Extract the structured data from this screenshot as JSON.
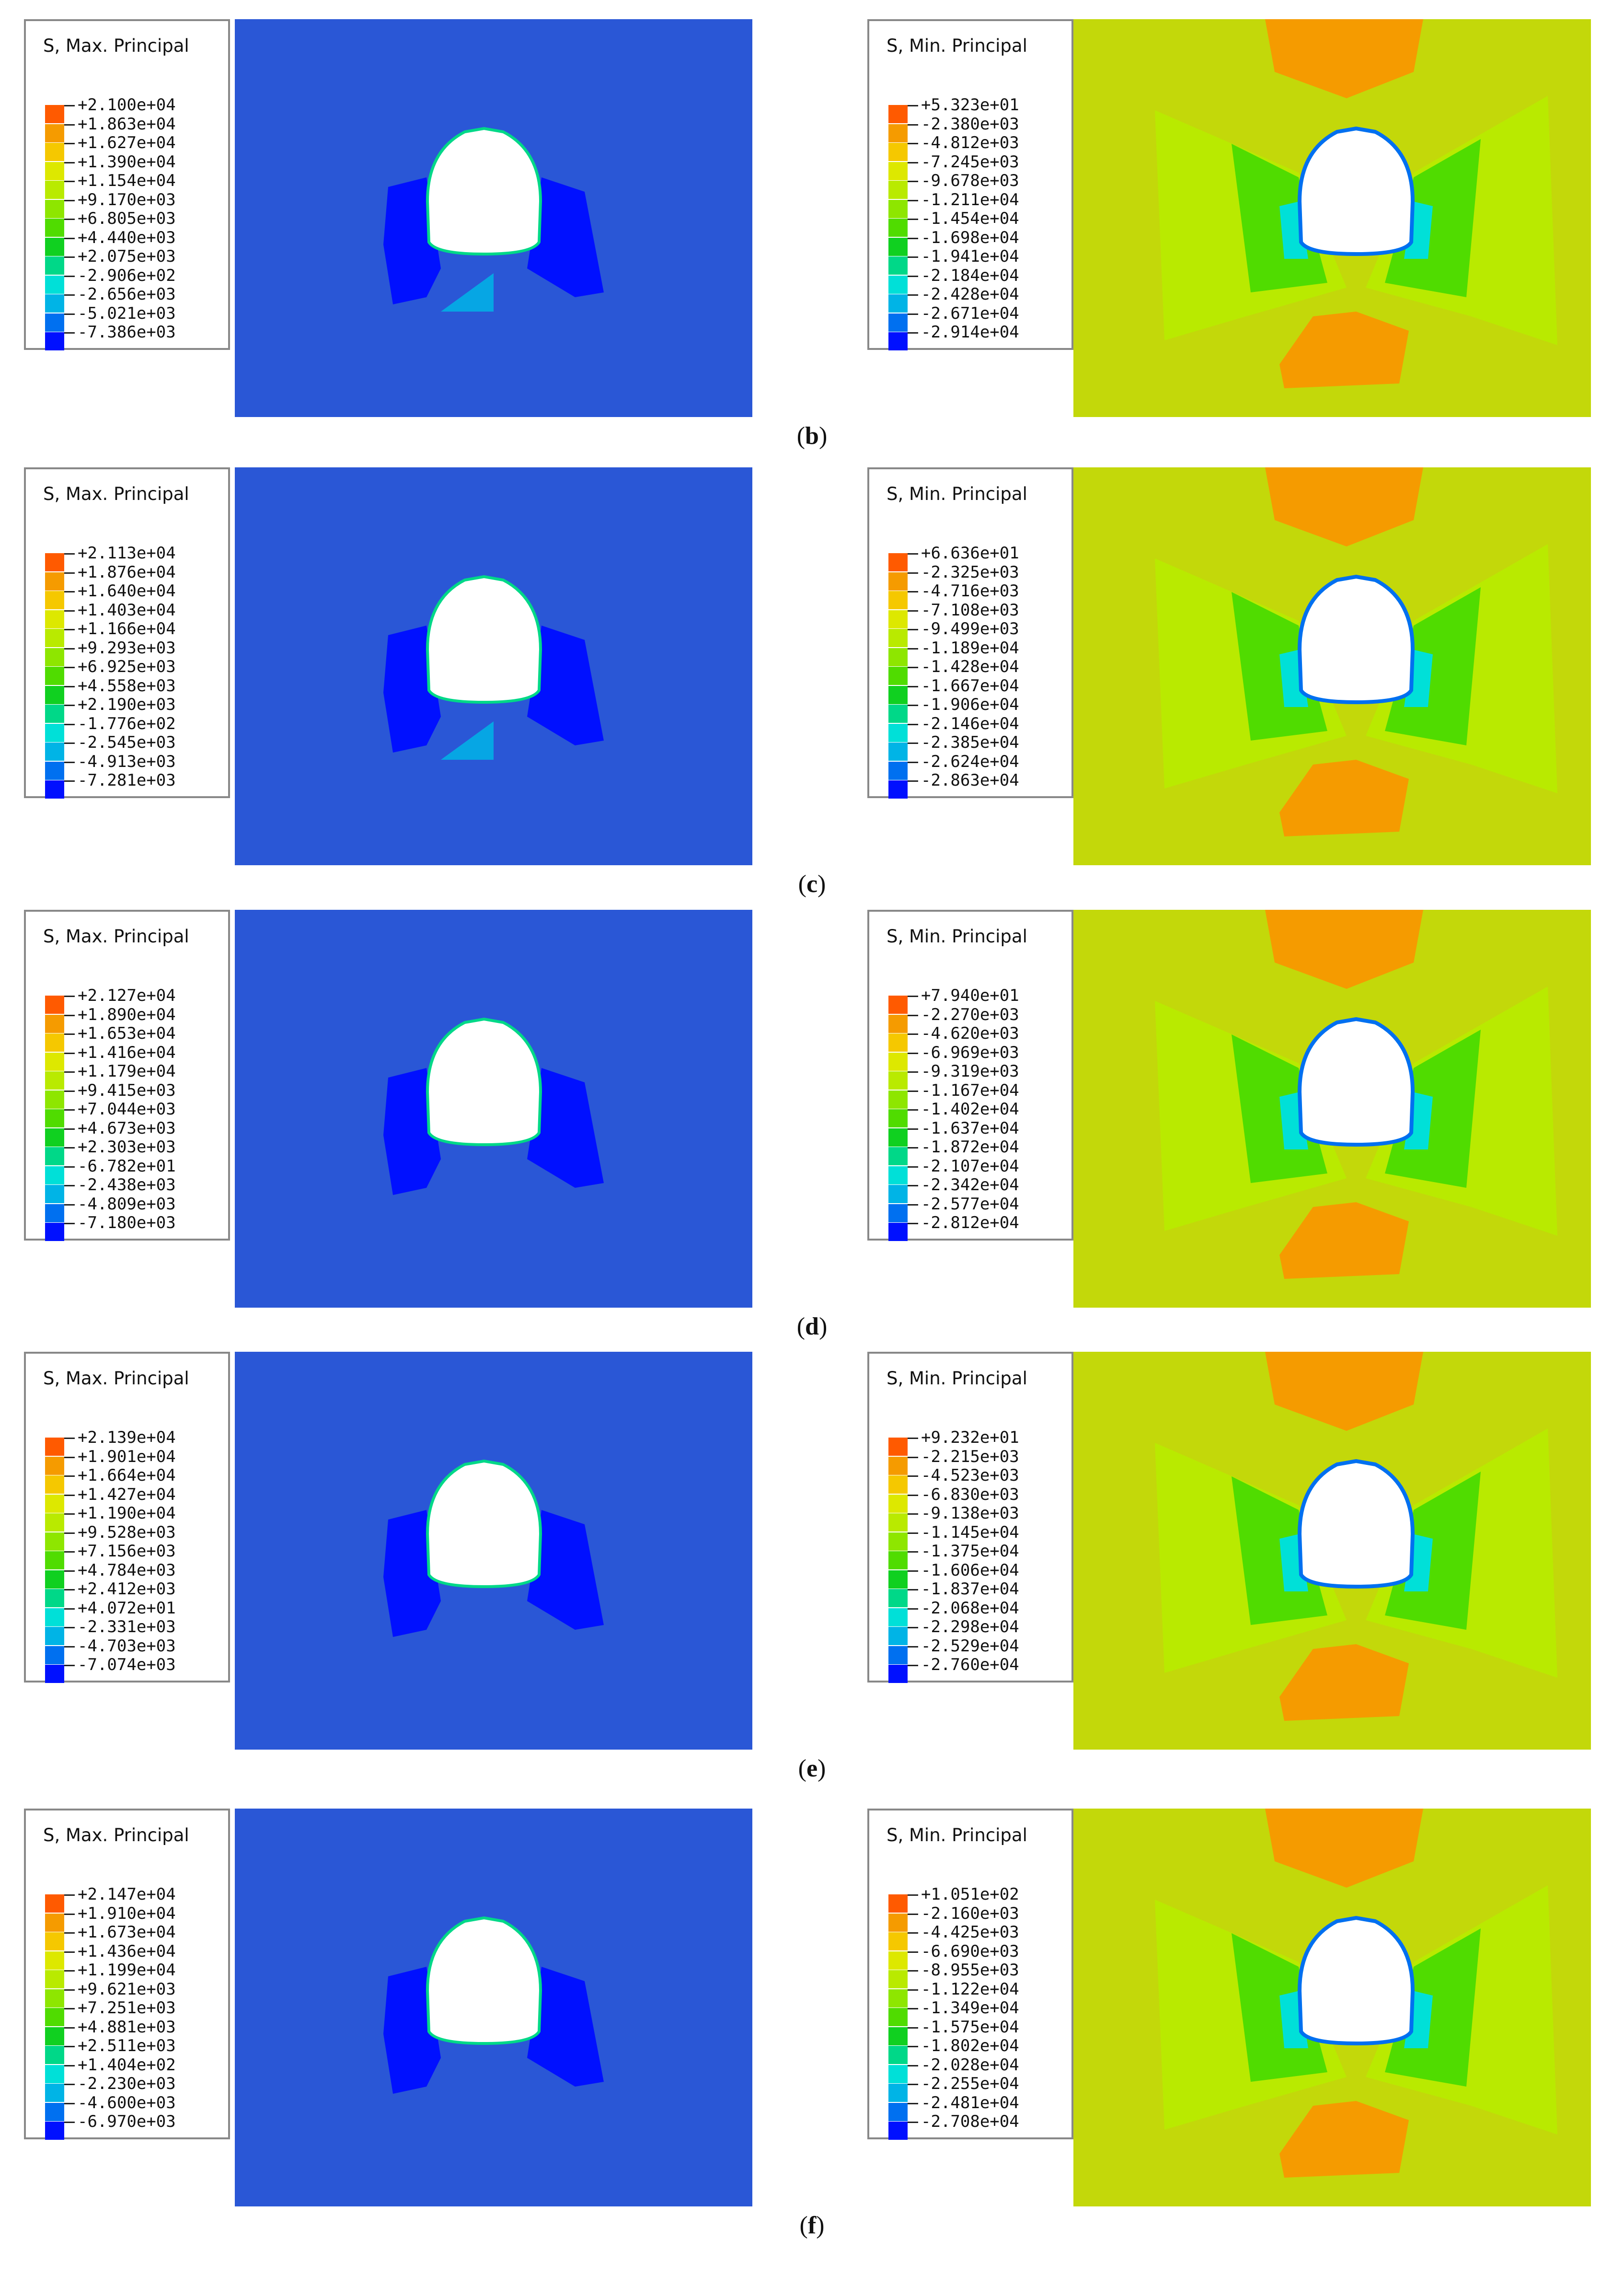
{
  "colors": {
    "background_max": "#2a57d6",
    "background_min": "#c3d80a",
    "opening": "#ffffff",
    "scale": [
      "#ff0000",
      "#ff5a00",
      "#f59b00",
      "#f5c800",
      "#dde800",
      "#b9ea00",
      "#8ee600",
      "#50dc00",
      "#10d020",
      "#00d888",
      "#00e0d8",
      "#00b4e6",
      "#0070f0",
      "#0010ff"
    ]
  },
  "rows": [
    {
      "label": "b",
      "max": {
        "title": "S, Max. Principal",
        "values": [
          "+2.100e+04",
          "+1.863e+04",
          "+1.627e+04",
          "+1.390e+04",
          "+1.154e+04",
          "+9.170e+03",
          "+6.805e+03",
          "+4.440e+03",
          "+2.075e+03",
          "-2.906e+02",
          "-2.656e+03",
          "-5.021e+03",
          "-7.386e+03"
        ]
      },
      "min": {
        "title": "S, Min. Principal",
        "values": [
          "+5.323e+01",
          "-2.380e+03",
          "-4.812e+03",
          "-7.245e+03",
          "-9.678e+03",
          "-1.211e+04",
          "-1.454e+04",
          "-1.698e+04",
          "-1.941e+04",
          "-2.184e+04",
          "-2.428e+04",
          "-2.671e+04",
          "-2.914e+04"
        ]
      }
    },
    {
      "label": "c",
      "max": {
        "title": "S, Max. Principal",
        "values": [
          "+2.113e+04",
          "+1.876e+04",
          "+1.640e+04",
          "+1.403e+04",
          "+1.166e+04",
          "+9.293e+03",
          "+6.925e+03",
          "+4.558e+03",
          "+2.190e+03",
          "-1.776e+02",
          "-2.545e+03",
          "-4.913e+03",
          "-7.281e+03"
        ]
      },
      "min": {
        "title": "S, Min. Principal",
        "values": [
          "+6.636e+01",
          "-2.325e+03",
          "-4.716e+03",
          "-7.108e+03",
          "-9.499e+03",
          "-1.189e+04",
          "-1.428e+04",
          "-1.667e+04",
          "-1.906e+04",
          "-2.146e+04",
          "-2.385e+04",
          "-2.624e+04",
          "-2.863e+04"
        ]
      }
    },
    {
      "label": "d",
      "max": {
        "title": "S, Max. Principal",
        "values": [
          "+2.127e+04",
          "+1.890e+04",
          "+1.653e+04",
          "+1.416e+04",
          "+1.179e+04",
          "+9.415e+03",
          "+7.044e+03",
          "+4.673e+03",
          "+2.303e+03",
          "-6.782e+01",
          "-2.438e+03",
          "-4.809e+03",
          "-7.180e+03"
        ]
      },
      "min": {
        "title": "S, Min. Principal",
        "values": [
          "+7.940e+01",
          "-2.270e+03",
          "-4.620e+03",
          "-6.969e+03",
          "-9.319e+03",
          "-1.167e+04",
          "-1.402e+04",
          "-1.637e+04",
          "-1.872e+04",
          "-2.107e+04",
          "-2.342e+04",
          "-2.577e+04",
          "-2.812e+04"
        ]
      }
    },
    {
      "label": "e",
      "max": {
        "title": "S, Max. Principal",
        "values": [
          "+2.139e+04",
          "+1.901e+04",
          "+1.664e+04",
          "+1.427e+04",
          "+1.190e+04",
          "+9.528e+03",
          "+7.156e+03",
          "+4.784e+03",
          "+2.412e+03",
          "+4.072e+01",
          "-2.331e+03",
          "-4.703e+03",
          "-7.074e+03"
        ]
      },
      "min": {
        "title": "S, Min. Principal",
        "values": [
          "+9.232e+01",
          "-2.215e+03",
          "-4.523e+03",
          "-6.830e+03",
          "-9.138e+03",
          "-1.145e+04",
          "-1.375e+04",
          "-1.606e+04",
          "-1.837e+04",
          "-2.068e+04",
          "-2.298e+04",
          "-2.529e+04",
          "-2.760e+04"
        ]
      }
    },
    {
      "label": "f",
      "max": {
        "title": "S, Max. Principal",
        "values": [
          "+2.147e+04",
          "+1.910e+04",
          "+1.673e+04",
          "+1.436e+04",
          "+1.199e+04",
          "+9.621e+03",
          "+7.251e+03",
          "+4.881e+03",
          "+2.511e+03",
          "+1.404e+02",
          "-2.230e+03",
          "-4.600e+03",
          "-6.970e+03"
        ]
      },
      "min": {
        "title": "S, Min. Principal",
        "values": [
          "+1.051e+02",
          "-2.160e+03",
          "-4.425e+03",
          "-6.690e+03",
          "-8.955e+03",
          "-1.122e+04",
          "-1.349e+04",
          "-1.575e+04",
          "-1.802e+04",
          "-2.028e+04",
          "-2.255e+04",
          "-2.481e+04",
          "-2.708e+04"
        ]
      }
    }
  ]
}
